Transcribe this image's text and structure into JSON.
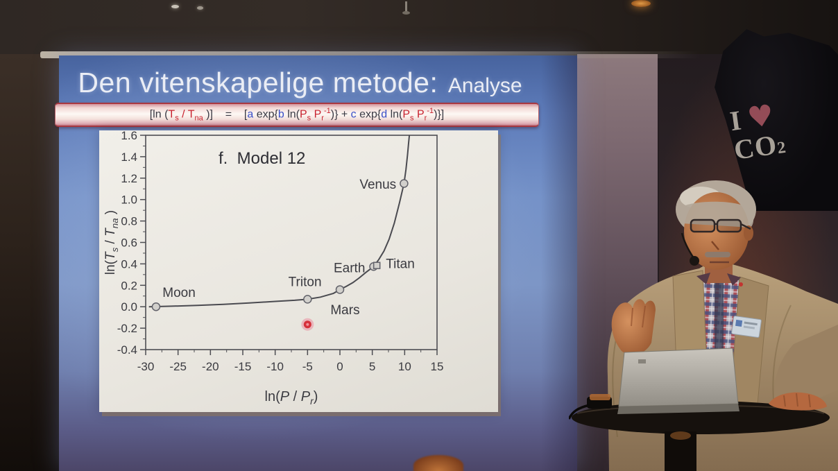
{
  "slide": {
    "title": {
      "main": "Den vitenskapelige metode:",
      "sub": "Analyse"
    },
    "equation": {
      "segments": [
        {
          "t": "[ln (",
          "c": "k"
        },
        {
          "t": "T",
          "c": "r"
        },
        {
          "t": "s",
          "c": "r",
          "v": "sub"
        },
        {
          "t": " / ",
          "c": "r"
        },
        {
          "t": "T",
          "c": "r"
        },
        {
          "t": "na",
          "c": "r",
          "v": "sub"
        },
        {
          "t": " )]",
          "c": "k"
        },
        {
          "t": "    =    ",
          "c": "k"
        },
        {
          "t": "[",
          "c": "k"
        },
        {
          "t": "a",
          "c": "b"
        },
        {
          "t": " exp{",
          "c": "k"
        },
        {
          "t": "b",
          "c": "b"
        },
        {
          "t": " ln(",
          "c": "k"
        },
        {
          "t": "P",
          "c": "r"
        },
        {
          "t": "s",
          "c": "r",
          "v": "sub"
        },
        {
          "t": " ",
          "c": "k"
        },
        {
          "t": "P",
          "c": "r"
        },
        {
          "t": "r",
          "c": "r",
          "v": "sub"
        },
        {
          "t": "-1",
          "c": "r",
          "v": "sup"
        },
        {
          "t": ")} + ",
          "c": "k"
        },
        {
          "t": "c",
          "c": "b"
        },
        {
          "t": " exp{",
          "c": "k"
        },
        {
          "t": "d",
          "c": "b"
        },
        {
          "t": " ln(",
          "c": "k"
        },
        {
          "t": "P",
          "c": "r"
        },
        {
          "t": "s",
          "c": "r",
          "v": "sub"
        },
        {
          "t": " ",
          "c": "k"
        },
        {
          "t": "P",
          "c": "r"
        },
        {
          "t": "r",
          "c": "r",
          "v": "sub"
        },
        {
          "t": "-1",
          "c": "r",
          "v": "sup"
        },
        {
          "t": ")}]",
          "c": "k"
        }
      ]
    }
  },
  "chart_data": {
    "type": "scatter",
    "title": "f.  Model 12",
    "xlabel_segments": [
      {
        "t": "ln(",
        "i": false
      },
      {
        "t": "P",
        "i": true
      },
      {
        "t": " / ",
        "i": false
      },
      {
        "t": "P",
        "i": true
      },
      {
        "t": "r",
        "i": true,
        "v": "sub"
      },
      {
        "t": ")",
        "i": false
      }
    ],
    "ylabel_segments": [
      {
        "t": "ln(",
        "i": false
      },
      {
        "t": "T",
        "i": true
      },
      {
        "t": "s",
        "i": true,
        "v": "sub"
      },
      {
        "t": " / ",
        "i": false
      },
      {
        "t": "T",
        "i": true
      },
      {
        "t": "na",
        "i": true,
        "v": "sub"
      },
      {
        "t": " )",
        "i": false
      }
    ],
    "xlim": [
      -30,
      15
    ],
    "ylim": [
      -0.4,
      1.6
    ],
    "xticks": [
      -30,
      -25,
      -20,
      -15,
      -10,
      -5,
      0,
      5,
      10,
      15
    ],
    "yticks": [
      -0.4,
      -0.2,
      0,
      0.2,
      0.4,
      0.6,
      0.8,
      1,
      1.2,
      1.4,
      1.6
    ],
    "grid": false,
    "points": [
      {
        "name": "Moon",
        "x": -28.4,
        "y": 0.0,
        "marker": "circle",
        "label_x": -27.4,
        "label_y": 0.13,
        "anchor": "start"
      },
      {
        "name": "Triton",
        "x": -5,
        "y": 0.07,
        "marker": "circle",
        "label_x": -5.4,
        "label_y": 0.23,
        "anchor": "middle"
      },
      {
        "name": "Mars",
        "x": 0,
        "y": 0.16,
        "marker": "circle",
        "label_x": 0.8,
        "label_y": -0.03,
        "anchor": "middle"
      },
      {
        "name": "Earth",
        "x": 5.2,
        "y": 0.375,
        "marker": "circle",
        "label_x": 3.9,
        "label_y": 0.36,
        "anchor": "end"
      },
      {
        "name": "Titan",
        "x": 5.7,
        "y": 0.385,
        "marker": "square",
        "label_x": 7.1,
        "label_y": 0.4,
        "anchor": "start"
      },
      {
        "name": "Venus",
        "x": 9.9,
        "y": 1.15,
        "marker": "circle",
        "label_x": 8.7,
        "label_y": 1.14,
        "anchor": "end"
      }
    ],
    "curve": [
      [
        -29.5,
        0.0
      ],
      [
        -26,
        0.005
      ],
      [
        -22,
        0.012
      ],
      [
        -18,
        0.022
      ],
      [
        -14,
        0.035
      ],
      [
        -10,
        0.05
      ],
      [
        -7,
        0.06
      ],
      [
        -5,
        0.07
      ],
      [
        -3,
        0.09
      ],
      [
        -1,
        0.125
      ],
      [
        0,
        0.16
      ],
      [
        1,
        0.19
      ],
      [
        2,
        0.225
      ],
      [
        3,
        0.27
      ],
      [
        4,
        0.32
      ],
      [
        5.2,
        0.375
      ],
      [
        6,
        0.44
      ],
      [
        6.8,
        0.52
      ],
      [
        7.6,
        0.63
      ],
      [
        8.4,
        0.78
      ],
      [
        9.2,
        0.97
      ],
      [
        9.9,
        1.15
      ],
      [
        10.2,
        1.28
      ],
      [
        10.45,
        1.42
      ],
      [
        10.6,
        1.52
      ],
      [
        10.72,
        1.6
      ]
    ],
    "laser_dot": {
      "x": -5.0,
      "y": -0.165,
      "color": "#d6303a"
    }
  },
  "tshirt": {
    "line1": "I",
    "heart": "♥",
    "line2": "CO",
    "line2_sub": "2"
  },
  "colors": {
    "equation_red": "#c8232f",
    "equation_blue": "#3a50c8",
    "screen_blue": "#7592c8",
    "heart_pink": "#a0525e",
    "curve_gray": "#4a4a50"
  }
}
